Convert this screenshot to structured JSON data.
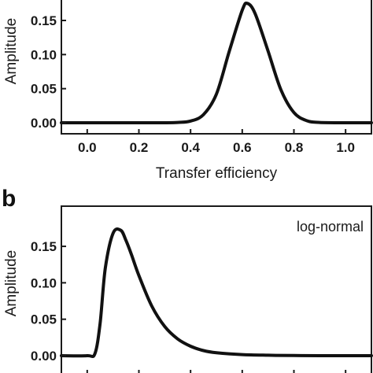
{
  "chart_data": [
    {
      "type": "line",
      "panel_label": "",
      "xlabel": "Transfer efficiency",
      "ylabel": "Amplitude",
      "xlim": [
        -0.1,
        1.1
      ],
      "ylim": [
        0.0,
        0.18
      ],
      "xticks": [
        0.0,
        0.2,
        0.4,
        0.6,
        0.8,
        1.0
      ],
      "xtick_labels": [
        "0.0",
        "0.2",
        "0.4",
        "0.6",
        "0.8",
        "1.0"
      ],
      "yticks": [
        0.0,
        0.05,
        0.1,
        0.15
      ],
      "ytick_labels": [
        "0.00",
        "0.05",
        "0.10",
        "0.15"
      ],
      "annotation": "",
      "x": [
        -0.1,
        0.0,
        0.1,
        0.2,
        0.3,
        0.35,
        0.4,
        0.45,
        0.5,
        0.55,
        0.6,
        0.62,
        0.65,
        0.7,
        0.75,
        0.8,
        0.85,
        0.9,
        1.0,
        1.1
      ],
      "y": [
        0.0,
        0.0,
        0.0,
        0.0,
        0.0,
        0.0005,
        0.0025,
        0.012,
        0.042,
        0.105,
        0.165,
        0.175,
        0.16,
        0.105,
        0.048,
        0.015,
        0.003,
        0.0005,
        0.0,
        0.0
      ]
    },
    {
      "type": "line",
      "panel_label": "b",
      "xlabel": "",
      "ylabel": "Amplitude",
      "xlim": [
        -0.1,
        1.1
      ],
      "ylim": [
        0.0,
        0.19
      ],
      "xticks": [
        0.0,
        0.2,
        0.4,
        0.6,
        0.8,
        1.0
      ],
      "xtick_labels": [],
      "yticks": [
        0.0,
        0.05,
        0.1,
        0.15
      ],
      "ytick_labels": [
        "0.00",
        "0.05",
        "0.10",
        "0.15"
      ],
      "annotation": "log-normal",
      "x": [
        -0.1,
        0.0,
        0.03,
        0.05,
        0.07,
        0.1,
        0.13,
        0.15,
        0.17,
        0.2,
        0.25,
        0.3,
        0.35,
        0.4,
        0.45,
        0.5,
        0.6,
        0.7,
        0.8,
        1.0,
        1.1
      ],
      "y": [
        0.0,
        0.0,
        0.003,
        0.045,
        0.12,
        0.168,
        0.172,
        0.158,
        0.14,
        0.11,
        0.068,
        0.04,
        0.023,
        0.013,
        0.007,
        0.004,
        0.0015,
        0.0006,
        0.0002,
        0.0,
        0.0
      ]
    }
  ]
}
